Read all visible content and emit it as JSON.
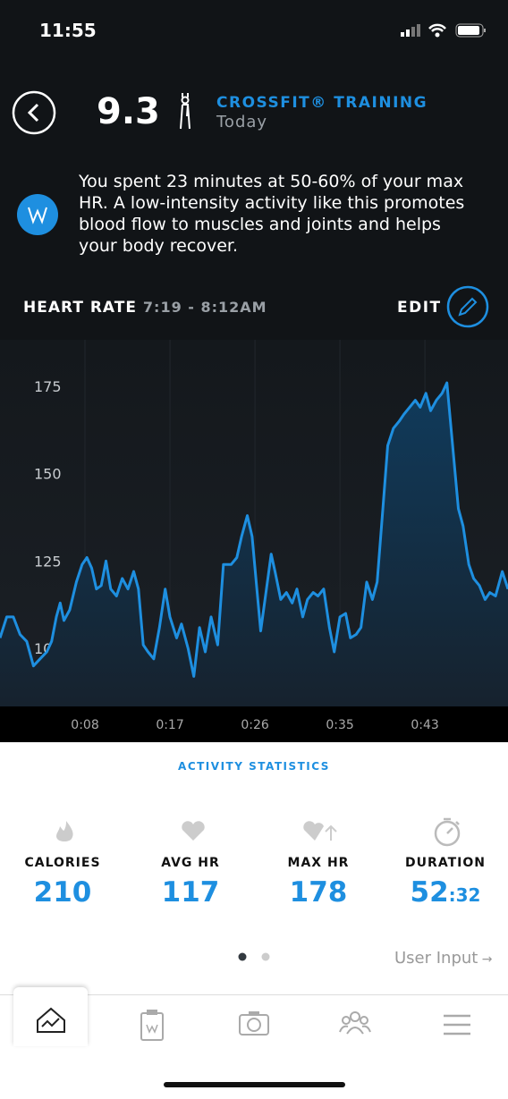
{
  "status": {
    "time": "11:55"
  },
  "header": {
    "score": "9.3",
    "activity": "CROSSFIT® TRAINING",
    "date": "Today"
  },
  "insight": {
    "text": "You spent 23 minutes at 50-60% of your max HR. A low-intensity activity like this promotes blood flow to muscles and joints and helps your body recover."
  },
  "heart_rate": {
    "label": "HEART RATE",
    "time_range": "7:19 - 8:12AM",
    "edit": "EDIT"
  },
  "chart_data": {
    "type": "area",
    "color": "#1e8fe0",
    "grid": true,
    "xlim": [
      0,
      53.2
    ],
    "ylim": [
      83.4,
      188.3
    ],
    "xticks": [
      {
        "value": 8.9,
        "label": "0:08"
      },
      {
        "value": 17.8,
        "label": "0:17"
      },
      {
        "value": 26.7,
        "label": "0:26"
      },
      {
        "value": 35.6,
        "label": "0:35"
      },
      {
        "value": 44.5,
        "label": "0:43"
      }
    ],
    "yticks": [
      100,
      125,
      150,
      175
    ],
    "x": [
      0,
      0.7,
      1.4,
      2.1,
      2.8,
      3.5,
      4.2,
      4.9,
      5.4,
      5.9,
      6.3,
      6.7,
      7.3,
      8.0,
      8.6,
      9.1,
      9.6,
      10.1,
      10.6,
      11.1,
      11.6,
      12.2,
      12.8,
      13.4,
      14.0,
      14.5,
      15.0,
      15.5,
      16.1,
      16.7,
      17.3,
      17.8,
      18.5,
      19.0,
      19.7,
      20.3,
      20.9,
      21.5,
      22.1,
      22.8,
      23.4,
      24.2,
      24.8,
      25.3,
      25.9,
      26.4,
      26.9,
      27.3,
      27.9,
      28.4,
      28.8,
      29.4,
      30.0,
      30.6,
      31.1,
      31.7,
      32.2,
      32.8,
      33.3,
      33.9,
      34.5,
      35.0,
      35.6,
      36.2,
      36.7,
      37.3,
      37.8,
      38.4,
      39.0,
      39.5,
      40.1,
      40.6,
      41.2,
      41.8,
      42.3,
      42.9,
      43.5,
      44.0,
      44.6,
      45.1,
      45.7,
      46.3,
      46.8,
      47.4,
      48.0,
      48.5,
      49.1,
      49.6,
      50.2,
      50.8,
      51.3,
      51.9,
      52.6,
      53.2
    ],
    "values": [
      103,
      109,
      109,
      104,
      102,
      95,
      97,
      99,
      102,
      109,
      113,
      108,
      111,
      119,
      124,
      126,
      123,
      117,
      118,
      125,
      117,
      115,
      120,
      117,
      122,
      117,
      101,
      99,
      97,
      106,
      117,
      109,
      103,
      107,
      100,
      92,
      106,
      99,
      109,
      101,
      124,
      124,
      126,
      132,
      138,
      132,
      117,
      105,
      117,
      127,
      122,
      114,
      116,
      113,
      117,
      109,
      114,
      116,
      115,
      117,
      106,
      99,
      109,
      110,
      103,
      104,
      106,
      119,
      114,
      119,
      140,
      158,
      163,
      165,
      167,
      169,
      171,
      169,
      173,
      168,
      171,
      173,
      176,
      158,
      140,
      135,
      124,
      120,
      118,
      114,
      116,
      115,
      122,
      117
    ]
  },
  "statistics": {
    "title": "ACTIVITY STATISTICS",
    "items": [
      {
        "label": "CALORIES",
        "value": "210"
      },
      {
        "label": "AVG HR",
        "value": "117"
      },
      {
        "label": "MAX HR",
        "value": "178"
      },
      {
        "label": "DURATION",
        "value": "52",
        "suffix": ":32"
      }
    ]
  },
  "footer": {
    "user_input": "User Input"
  }
}
